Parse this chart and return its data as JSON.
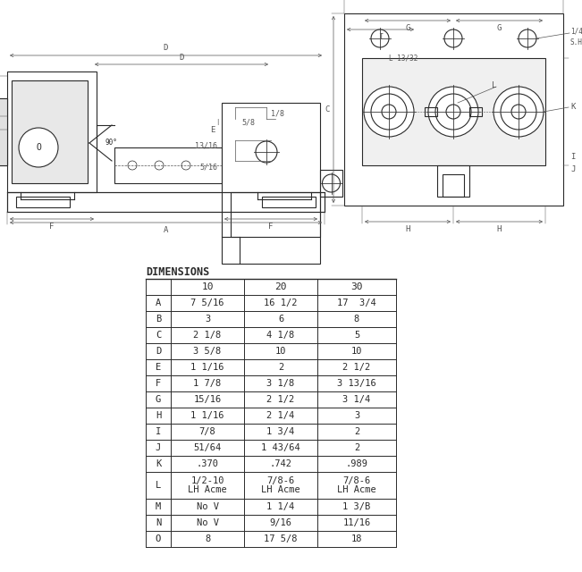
{
  "table_title": "DIMENSIONS",
  "columns": [
    "",
    "10",
    "20",
    "30"
  ],
  "rows": [
    [
      "A",
      "7 5/16",
      "16 1/2",
      "17  3/4"
    ],
    [
      "B",
      "3",
      "6",
      "8"
    ],
    [
      "C",
      "2 1/8",
      "4 1/8",
      "5"
    ],
    [
      "D",
      "3 5/8",
      "10",
      "10"
    ],
    [
      "E",
      "1 1/16",
      "2",
      "2 1/2"
    ],
    [
      "F",
      "1 7/8",
      "3 1/8",
      "3 13/16"
    ],
    [
      "G",
      "15/16",
      "2 1/2",
      "3 1/4"
    ],
    [
      "H",
      "1 1/16",
      "2 1/4",
      "3"
    ],
    [
      "I",
      "7/8",
      "1 3/4",
      "2"
    ],
    [
      "J",
      "51/64",
      "1 43/64",
      "2"
    ],
    [
      "K",
      ".370",
      ".742",
      ".989"
    ],
    [
      "L",
      "1/2-10\nLH Acme",
      "7/8-6\nLH Acme",
      "7/8-6\nLH Acme"
    ],
    [
      "M",
      "No V",
      "1 1/4",
      "1 3/B"
    ],
    [
      "N",
      "No V",
      "9/16",
      "11/16"
    ],
    [
      "O",
      "8",
      "17 5/8",
      "18"
    ]
  ],
  "bg_color": "#ffffff",
  "line_color": "#2a2a2a",
  "text_color": "#2a2a2a",
  "dim_color": "#555555",
  "table_font_size": 7.5,
  "header_font_size": 8,
  "title_font_size": 8.5,
  "draw_lw": 0.8,
  "dim_lw": 0.5
}
